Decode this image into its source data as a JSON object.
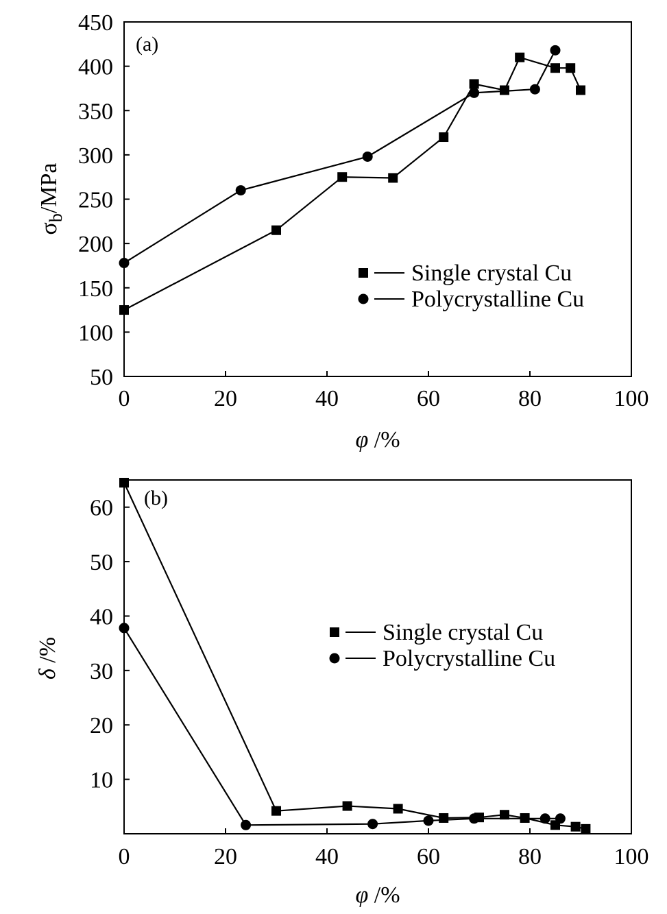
{
  "chart_data": [
    {
      "type": "line",
      "panel_label": "(a)",
      "xlabel": "φ /%",
      "ylabel": "σ_b/MPa",
      "ylabel_main": "σ",
      "ylabel_sub": "b",
      "ylabel_rest": "/MPa",
      "xlim": [
        0,
        100
      ],
      "ylim": [
        50,
        450
      ],
      "xticks": [
        0,
        20,
        40,
        60,
        80,
        100
      ],
      "yticks": [
        50,
        100,
        150,
        200,
        250,
        300,
        350,
        400,
        450
      ],
      "grid": false,
      "legend_position": "center-right",
      "series": [
        {
          "name": "Single crystal Cu",
          "marker": "square",
          "x": [
            0,
            30,
            43,
            53,
            63,
            69,
            75,
            78,
            85,
            88,
            90
          ],
          "y": [
            125,
            215,
            275,
            274,
            320,
            380,
            373,
            410,
            398,
            398,
            373
          ]
        },
        {
          "name": "Polycrystalline Cu",
          "marker": "circle",
          "x": [
            0,
            23,
            48,
            69,
            81,
            85
          ],
          "y": [
            178,
            260,
            298,
            370,
            374,
            418
          ]
        }
      ]
    },
    {
      "type": "line",
      "panel_label": "(b)",
      "xlabel": "φ /%",
      "ylabel": "δ /%",
      "xlim": [
        0,
        100
      ],
      "ylim": [
        0,
        65
      ],
      "xticks": [
        0,
        20,
        40,
        60,
        80,
        100
      ],
      "yticks": [
        10,
        20,
        30,
        40,
        50,
        60
      ],
      "grid": false,
      "legend_position": "center-right",
      "series": [
        {
          "name": "Single crystal Cu",
          "marker": "square",
          "x": [
            0,
            30,
            44,
            54,
            63,
            70,
            75,
            79,
            85,
            89,
            91
          ],
          "y": [
            64.5,
            4.2,
            5.1,
            4.6,
            2.9,
            3.0,
            3.5,
            2.9,
            1.6,
            1.3,
            0.9
          ]
        },
        {
          "name": "Polycrystalline Cu",
          "marker": "circle",
          "x": [
            0,
            24,
            49,
            60,
            69,
            83,
            86
          ],
          "y": [
            37.8,
            1.6,
            1.8,
            2.4,
            2.8,
            2.8,
            2.8
          ]
        }
      ]
    }
  ]
}
